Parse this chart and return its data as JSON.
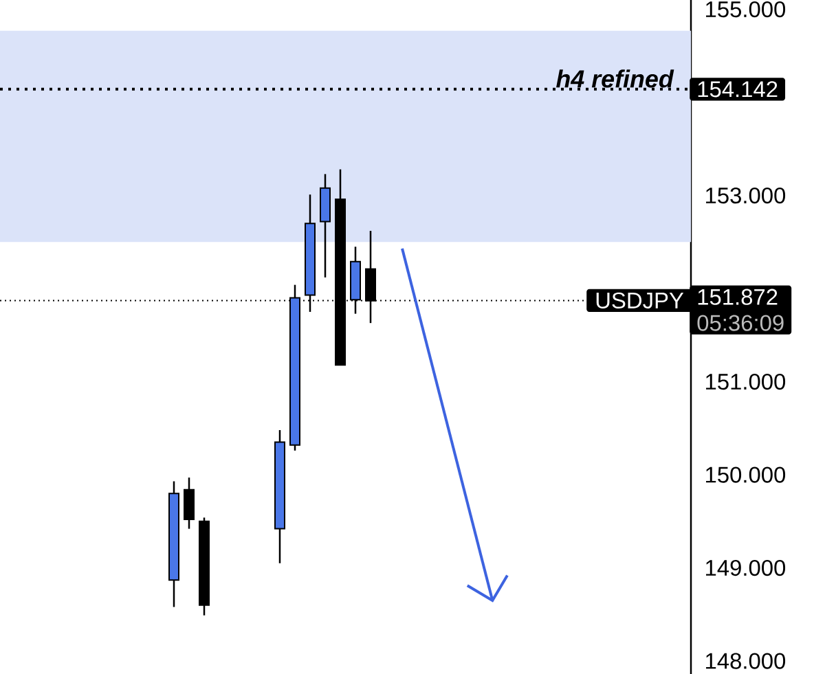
{
  "chart_data": {
    "type": "candlestick",
    "categories": [
      null,
      null,
      null,
      null,
      null,
      null,
      null,
      null,
      null,
      null,
      null,
      null,
      null,
      null,
      null,
      null,
      null,
      null,
      null,
      null,
      null,
      null,
      null,
      null,
      null,
      null,
      null,
      null,
      null,
      null,
      null,
      null,
      null,
      null,
      null,
      null,
      null,
      null,
      null,
      null,
      null,
      null,
      null,
      null,
      null
    ],
    "ohlc": [
      null,
      null,
      null,
      null,
      null,
      null,
      null,
      null,
      null,
      null,
      [
        148.87,
        149.93,
        148.58,
        149.8
      ],
      [
        149.84,
        149.97,
        149.42,
        149.52
      ],
      [
        149.5,
        149.54,
        148.49,
        148.6
      ],
      null,
      null,
      null,
      null,
      [
        149.42,
        150.48,
        149.05,
        150.35
      ],
      [
        150.32,
        152.04,
        150.26,
        151.9
      ],
      [
        151.93,
        153.01,
        151.75,
        152.7
      ],
      [
        152.72,
        153.23,
        152.12,
        153.08
      ],
      [
        152.96,
        153.28,
        151.18,
        151.18
      ],
      [
        151.88,
        152.45,
        151.73,
        152.29
      ],
      [
        152.21,
        152.62,
        151.63,
        151.87
      ],
      null,
      null,
      null,
      null,
      null,
      null,
      null,
      null,
      null,
      null,
      null,
      null,
      null,
      null,
      null,
      null,
      null,
      null,
      null,
      null,
      null
    ],
    "colors": [
      null,
      null,
      null,
      null,
      null,
      null,
      null,
      null,
      null,
      null,
      "#4a77e8",
      "#000000",
      "#000000",
      null,
      null,
      null,
      null,
      "#4a77e8",
      "#4a77e8",
      "#4a77e8",
      "#4a77e8",
      "#000000",
      "#4a77e8",
      "#000000",
      null,
      null,
      null,
      null,
      null,
      null,
      null,
      null,
      null,
      null,
      null,
      null,
      null,
      null,
      null,
      null,
      null,
      null,
      null,
      null,
      null
    ],
    "ylim": [
      147.86,
      155.1
    ],
    "yticks": [
      {
        "value": 148,
        "label": "148.000"
      },
      {
        "value": 149,
        "label": "149.000"
      },
      {
        "value": 150,
        "label": "150.000"
      },
      {
        "value": 151,
        "label": "151.000"
      },
      {
        "value": 153,
        "label": "153.000"
      },
      {
        "value": 155,
        "label": "155.000"
      }
    ],
    "bands": [
      {
        "axis": "y",
        "from": 152.5,
        "to": 154.77,
        "color": "#dbe3f9"
      }
    ],
    "ref_lines": [
      {
        "axis": "y",
        "value": 154.142,
        "label": "h4 refined",
        "line_style": "dotted"
      },
      {
        "axis": "y",
        "value": 151.872,
        "label": "USDJPY",
        "line_style": "dotted"
      }
    ],
    "annotations": [
      "05:36:09",
      "154.142",
      "151.872"
    ]
  }
}
